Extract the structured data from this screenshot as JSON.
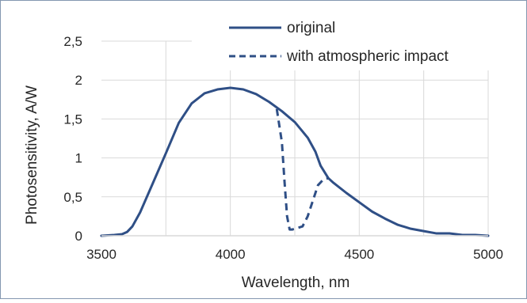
{
  "chart_data": {
    "type": "line",
    "title": "",
    "xlabel": "Wavelength, nm",
    "ylabel": "Photosensitivity, A/W",
    "xlim": [
      3500,
      5000
    ],
    "ylim": [
      0,
      2.5
    ],
    "x_ticks": [
      {
        "value": 3500,
        "label": "3500"
      },
      {
        "value": 4000,
        "label": "4000"
      },
      {
        "value": 4500,
        "label": "4500"
      },
      {
        "value": 5000,
        "label": "5000"
      }
    ],
    "x_gridlines": [
      3750,
      4000,
      4250,
      4500,
      4750,
      5000
    ],
    "y_ticks": [
      {
        "value": 0,
        "label": "0"
      },
      {
        "value": 0.5,
        "label": "0,5"
      },
      {
        "value": 1,
        "label": "1"
      },
      {
        "value": 1.5,
        "label": "1,5"
      },
      {
        "value": 2,
        "label": "2"
      },
      {
        "value": 2.5,
        "label": "2,5"
      }
    ],
    "grid": true,
    "legend_position": "top-right",
    "colors": {
      "series": "#2f4f86",
      "grid": "#d9d9d9",
      "border": "#8497b0"
    },
    "series": [
      {
        "name": "original",
        "style": "solid",
        "x": [
          3500,
          3550,
          3580,
          3600,
          3620,
          3650,
          3700,
          3750,
          3800,
          3850,
          3900,
          3950,
          4000,
          4050,
          4100,
          4150,
          4200,
          4250,
          4300,
          4330,
          4350,
          4380,
          4400,
          4450,
          4500,
          4550,
          4600,
          4650,
          4700,
          4750,
          4800,
          4850,
          4900,
          4950,
          5000
        ],
        "y": [
          0.0,
          0.01,
          0.02,
          0.05,
          0.12,
          0.3,
          0.68,
          1.06,
          1.45,
          1.7,
          1.83,
          1.88,
          1.9,
          1.88,
          1.82,
          1.72,
          1.6,
          1.46,
          1.26,
          1.08,
          0.9,
          0.74,
          0.68,
          0.55,
          0.43,
          0.31,
          0.22,
          0.14,
          0.09,
          0.06,
          0.03,
          0.03,
          0.01,
          0.01,
          0.0
        ]
      },
      {
        "name": "with atmospheric impact",
        "style": "dashed",
        "x": [
          4180,
          4200,
          4210,
          4220,
          4230,
          4240,
          4260,
          4280,
          4300,
          4320,
          4340,
          4360,
          4380
        ],
        "y": [
          1.63,
          1.2,
          0.7,
          0.25,
          0.08,
          0.08,
          0.1,
          0.12,
          0.25,
          0.45,
          0.65,
          0.72,
          0.74
        ]
      }
    ]
  }
}
